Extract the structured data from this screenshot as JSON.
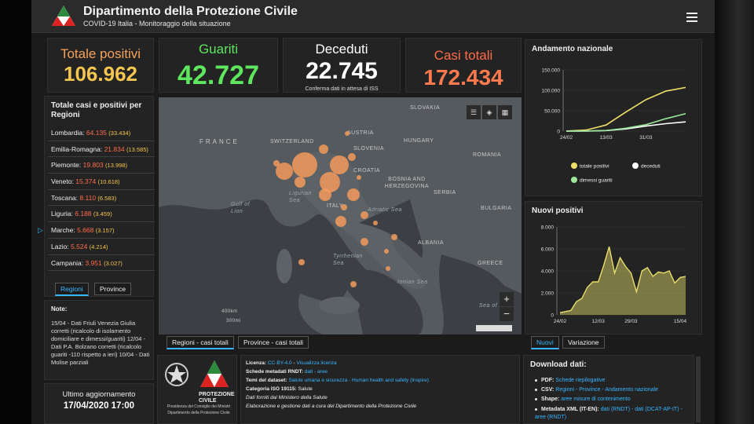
{
  "header": {
    "title": "Dipartimento della Protezione Civile",
    "subtitle": "COVID-19 Italia - Monitoraggio della situazione"
  },
  "stats": {
    "totale_positivi": {
      "label": "Totale positivi",
      "value": "106.962",
      "color": "#f5c64f"
    },
    "guariti": {
      "label": "Guariti",
      "value": "42.727",
      "color": "#5fe65f"
    },
    "deceduti": {
      "label": "Deceduti",
      "value": "22.745",
      "note": "Conferma dati in attesa di ISS",
      "color": "#ffffff"
    },
    "casi_totali": {
      "label": "Casi totali",
      "value": "172.434",
      "color": "#ff6b4a"
    }
  },
  "regions_panel": {
    "title": "Totale casi e positivi per Regioni",
    "rows": [
      {
        "name": "Lombardia:",
        "total": "64.135",
        "positive": "(33.434)"
      },
      {
        "name": "Emilia-Romagna:",
        "total": "21.834",
        "positive": "(13.585)"
      },
      {
        "name": "Piemonte:",
        "total": "19.803",
        "positive": "(13.998)"
      },
      {
        "name": "Veneto:",
        "total": "15.374",
        "positive": "(10.618)"
      },
      {
        "name": "Toscana:",
        "total": "8.110",
        "positive": "(6.583)"
      },
      {
        "name": "Liguria:",
        "total": "6.188",
        "positive": "(3.459)"
      },
      {
        "name": "Marche:",
        "total": "5.668",
        "positive": "(3.157)"
      },
      {
        "name": "Lazio:",
        "total": "5.524",
        "positive": "(4.214)"
      },
      {
        "name": "Campania:",
        "total": "3.951",
        "positive": "(3.027)"
      }
    ],
    "tabs": [
      "Regioni",
      "Province"
    ]
  },
  "notes": {
    "title": "Note:",
    "text": "15/04 - Dati Friuli Venezia Giulia corretti (ricalcolo di isolamento domiciliare e dimessi/guariti) 12/04 - Dati P.A. Bolzano corretti (ricalcolo guariti -110 rispetto a ieri) 10/04 - Dati Molise parziali"
  },
  "last_update": {
    "label": "Ultimo aggiornamento",
    "value": "17/04/2020 17:00"
  },
  "map": {
    "labels": {
      "france": "FRANCE",
      "switzerland": "SWITZERLAND",
      "austria": "AUSTRIA",
      "slovakia": "SLOVAKIA",
      "hungary": "HUNGARY",
      "slovenia": "SLOVENIA",
      "croatia": "CROATIA",
      "romania": "ROMANIA",
      "bosnia": "BOSNIA AND HERZEGOVINA",
      "serbia": "SERBIA",
      "bulgaria": "BULGARIA",
      "italy": "ITALY",
      "albania": "ALBANIA",
      "greece": "GREECE",
      "gulf_lion": "Gulf of Lion",
      "ligurian": "Ligurian Sea",
      "adriatic": "Adriatic Sea",
      "tyrrhenian": "Tyrrhenian Sea",
      "ionian": "Ionian Sea",
      "sea_of": "Sea of",
      "scale_km": "400km",
      "scale_mi": "300mi"
    },
    "zoom_in": "+",
    "zoom_out": "−",
    "tabs": [
      "Regioni - casi totali",
      "Province - casi totali"
    ]
  },
  "trend_panel": {
    "title": "Andamento nazionale",
    "legend": [
      {
        "label": "totale positivi",
        "color": "#f0e06a"
      },
      {
        "label": "deceduti",
        "color": "#ffffff"
      },
      {
        "label": "dimessi guariti",
        "color": "#9be89b"
      }
    ]
  },
  "new_panel": {
    "title": "Nuovi positivi",
    "tabs": [
      "Nuovi",
      "Variazione"
    ]
  },
  "chart_data": [
    {
      "type": "line",
      "title": "Andamento nazionale",
      "x_ticks": [
        "24/02",
        "13/03",
        "31/03"
      ],
      "y_ticks": [
        "0",
        "50.000",
        "100.000",
        "150.000"
      ],
      "ylim": [
        0,
        150000
      ],
      "x": [
        "24/02",
        "04/03",
        "13/03",
        "22/03",
        "31/03",
        "09/04",
        "17/04"
      ],
      "series": [
        {
          "name": "totale positivi",
          "values": [
            200,
            2700,
            15000,
            47000,
            77000,
            98000,
            106962
          ],
          "color": "#f0e06a"
        },
        {
          "name": "deceduti",
          "values": [
            7,
            107,
            1266,
            5476,
            12428,
            18279,
            22745
          ],
          "color": "#ffffff"
        },
        {
          "name": "dimessi guariti",
          "values": [
            1,
            276,
            1439,
            7024,
            15729,
            30455,
            42727
          ],
          "color": "#9be89b"
        }
      ],
      "legend": "bottom",
      "grid": true
    },
    {
      "type": "area",
      "title": "Nuovi positivi",
      "x_ticks": [
        "24/02",
        "12/03",
        "29/03",
        "15/04"
      ],
      "y_ticks": [
        "0",
        "2.000",
        "4.000",
        "6.000",
        "8.000"
      ],
      "ylim": [
        0,
        8000
      ],
      "x": [
        "24/02",
        "28/02",
        "03/03",
        "07/03",
        "10/03",
        "13/03",
        "15/03",
        "17/03",
        "19/03",
        "21/03",
        "23/03",
        "25/03",
        "27/03",
        "29/03",
        "31/03",
        "02/04",
        "04/04",
        "06/04",
        "08/04",
        "10/04",
        "12/04",
        "14/04",
        "15/04",
        "17/04"
      ],
      "values": [
        200,
        300,
        400,
        1200,
        1500,
        2500,
        3000,
        3000,
        4500,
        6200,
        3800,
        5200,
        4400,
        3800,
        2100,
        4000,
        4300,
        3500,
        3900,
        3800,
        4000,
        2900,
        3400,
        3500
      ],
      "color": "#e8df6c",
      "grid": true
    }
  ],
  "info": {
    "licenza_label": "Licenza:",
    "licenza_link": "CC-BY-4.0",
    "licenza_sep": " - ",
    "licenza_link2": "Visualizza licenza",
    "schede_label": "Schede metadati RNDT:",
    "schede_links": "dati - aree",
    "temi_label": "Temi del dataset:",
    "temi_value": "Salute umana e sicurezza - Human health and safety (Inspire)",
    "categoria_label": "Categoria ISO 19115:",
    "categoria_value": "Salute",
    "fonte": "Dati forniti dal Ministero della Salute",
    "elaborazione": "Elaborazione e gestione dati a cura del Dipartimento della Protezione Civile"
  },
  "logo_block": {
    "name": "PROTEZIONE CIVILE",
    "line1": "Presidenza del Consiglio dei Ministri",
    "line2": "Dipartimento della Protezione Civile"
  },
  "download": {
    "title": "Download dati:",
    "pdf_label": "PDF:",
    "pdf_link": "Schede riepilogative",
    "csv_label": "CSV:",
    "csv_link": "Regioni - Province - Andamento nazionale",
    "shape_label": "Shape:",
    "shape_link": "aree misure di contenimento",
    "xml_label": "Metadata XML (IT-EN):",
    "xml_link": "dati (RNDT) - dati (DCAT-AP-IT) - aree (RNDT)"
  }
}
